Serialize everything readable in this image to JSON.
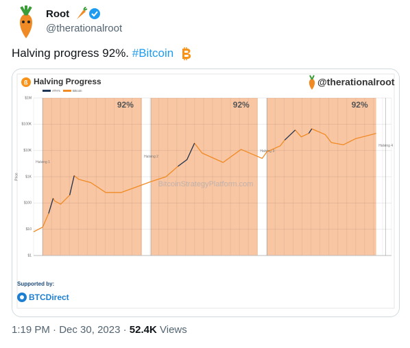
{
  "tweet": {
    "name": "Root",
    "handle": "@therationalroot",
    "text": "Halving progress 92%.",
    "hashtag": "#Bitcoin",
    "time": "1:19 PM",
    "date": "Dec 30, 2023",
    "views": "52.4K",
    "views_label": "Views"
  },
  "chart_data": {
    "type": "line",
    "title": "Halving Progress",
    "brand": "@therationalroot",
    "watermark": "BitcoinStrategyPlatform.com",
    "y_label": "Price",
    "supported_by": "Supported by:",
    "sponsor": "BTCDirect",
    "log_y": true,
    "xlim": [
      2012.6,
      2024.5
    ],
    "ylim": [
      1,
      1000000
    ],
    "yticks": [
      {
        "value": 1,
        "label": "$1"
      },
      {
        "value": 10,
        "label": "$10"
      },
      {
        "value": 100,
        "label": "$100"
      },
      {
        "value": 1000,
        "label": "$1K"
      },
      {
        "value": 10000,
        "label": "$10K"
      },
      {
        "value": 100000,
        "label": "$100K"
      },
      {
        "value": 1000000,
        "label": "$1M"
      }
    ],
    "grid": true,
    "x": [
      2012.6,
      2012.9,
      2013.1,
      2013.25,
      2013.3,
      2013.5,
      2013.8,
      2013.95,
      2014.1,
      2014.5,
      2015.0,
      2015.5,
      2016.0,
      2016.5,
      2017.0,
      2017.4,
      2017.7,
      2017.95,
      2018.2,
      2018.9,
      2019.5,
      2020.2,
      2020.36,
      2020.8,
      2020.95,
      2021.3,
      2021.5,
      2021.75,
      2021.85,
      2022.3,
      2022.5,
      2022.9,
      2023.3,
      2023.9,
      2023.99
    ],
    "series": [
      {
        "name": "ATH's",
        "color": "#1d3557",
        "values": [
          null,
          null,
          40,
          150,
          null,
          null,
          200,
          1100,
          null,
          null,
          null,
          null,
          null,
          null,
          null,
          2500,
          4500,
          19000,
          null,
          null,
          null,
          null,
          null,
          null,
          25000,
          60000,
          null,
          45000,
          67000,
          null,
          null,
          null,
          null,
          null,
          null
        ]
      },
      {
        "name": "Bitcoin",
        "color": "#f08a24",
        "values": [
          8,
          12,
          40,
          150,
          120,
          90,
          200,
          1100,
          800,
          600,
          250,
          250,
          400,
          650,
          1000,
          2500,
          4500,
          19000,
          8000,
          3500,
          11000,
          5000,
          9000,
          15000,
          25000,
          60000,
          33000,
          45000,
          67000,
          40000,
          20000,
          16500,
          28000,
          42000,
          45000
        ]
      }
    ],
    "bands": [
      {
        "start": 2012.9,
        "end": 2016.2,
        "label": "92%"
      },
      {
        "start": 2016.5,
        "end": 2020.05,
        "label": "92%"
      },
      {
        "start": 2020.36,
        "end": 2023.99,
        "label": "92%"
      }
    ],
    "band_color": "#f9c6a3",
    "halvings": [
      {
        "x": 2012.9,
        "label": "Halving 1"
      },
      {
        "x": 2016.5,
        "label": "Halving 2"
      },
      {
        "x": 2020.36,
        "label": "Halving 3"
      },
      {
        "x": 2024.3,
        "label": "Halving 4"
      }
    ]
  }
}
